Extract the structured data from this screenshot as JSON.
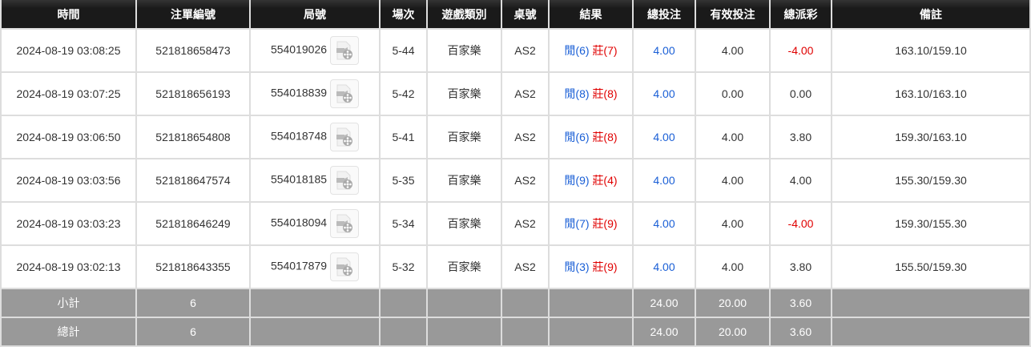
{
  "headers": [
    "時間",
    "注單編號",
    "局號",
    "場次",
    "遊戲類別",
    "桌號",
    "結果",
    "總投注",
    "有效投注",
    "總派彩",
    "備註"
  ],
  "rows": [
    {
      "time": "2024-08-19 03:08:25",
      "bet_id": "521818658473",
      "round": "554019026",
      "shoe": "5-44",
      "game": "百家樂",
      "table": "AS2",
      "player": "閒(6)",
      "banker": "莊(7)",
      "total_bet": "4.00",
      "valid_bet": "4.00",
      "payout": "-4.00",
      "payout_neg": true,
      "note": "163.10/159.10"
    },
    {
      "time": "2024-08-19 03:07:25",
      "bet_id": "521818656193",
      "round": "554018839",
      "shoe": "5-42",
      "game": "百家樂",
      "table": "AS2",
      "player": "閒(8)",
      "banker": "莊(8)",
      "total_bet": "4.00",
      "valid_bet": "0.00",
      "payout": "0.00",
      "payout_neg": false,
      "note": "163.10/163.10"
    },
    {
      "time": "2024-08-19 03:06:50",
      "bet_id": "521818654808",
      "round": "554018748",
      "shoe": "5-41",
      "game": "百家樂",
      "table": "AS2",
      "player": "閒(6)",
      "banker": "莊(8)",
      "total_bet": "4.00",
      "valid_bet": "4.00",
      "payout": "3.80",
      "payout_neg": false,
      "note": "159.30/163.10"
    },
    {
      "time": "2024-08-19 03:03:56",
      "bet_id": "521818647574",
      "round": "554018185",
      "shoe": "5-35",
      "game": "百家樂",
      "table": "AS2",
      "player": "閒(9)",
      "banker": "莊(4)",
      "total_bet": "4.00",
      "valid_bet": "4.00",
      "payout": "4.00",
      "payout_neg": false,
      "note": "155.30/159.30"
    },
    {
      "time": "2024-08-19 03:03:23",
      "bet_id": "521818646249",
      "round": "554018094",
      "shoe": "5-34",
      "game": "百家樂",
      "table": "AS2",
      "player": "閒(7)",
      "banker": "莊(9)",
      "total_bet": "4.00",
      "valid_bet": "4.00",
      "payout": "-4.00",
      "payout_neg": true,
      "note": "159.30/155.30"
    },
    {
      "time": "2024-08-19 03:02:13",
      "bet_id": "521818643355",
      "round": "554017879",
      "shoe": "5-32",
      "game": "百家樂",
      "table": "AS2",
      "player": "閒(3)",
      "banker": "莊(9)",
      "total_bet": "4.00",
      "valid_bet": "4.00",
      "payout": "3.80",
      "payout_neg": false,
      "note": "155.50/159.30"
    }
  ],
  "subtotal": {
    "label": "小計",
    "count": "6",
    "total_bet": "24.00",
    "valid_bet": "20.00",
    "payout": "3.60"
  },
  "grandtotal": {
    "label": "總計",
    "count": "6",
    "total_bet": "24.00",
    "valid_bet": "20.00",
    "payout": "3.60"
  },
  "icons": {
    "replay": "video-replay-icon"
  },
  "colors": {
    "player": "#1a5fd6",
    "banker": "#e00000",
    "negative": "#e00000",
    "total_bet": "#1a5fd6"
  }
}
